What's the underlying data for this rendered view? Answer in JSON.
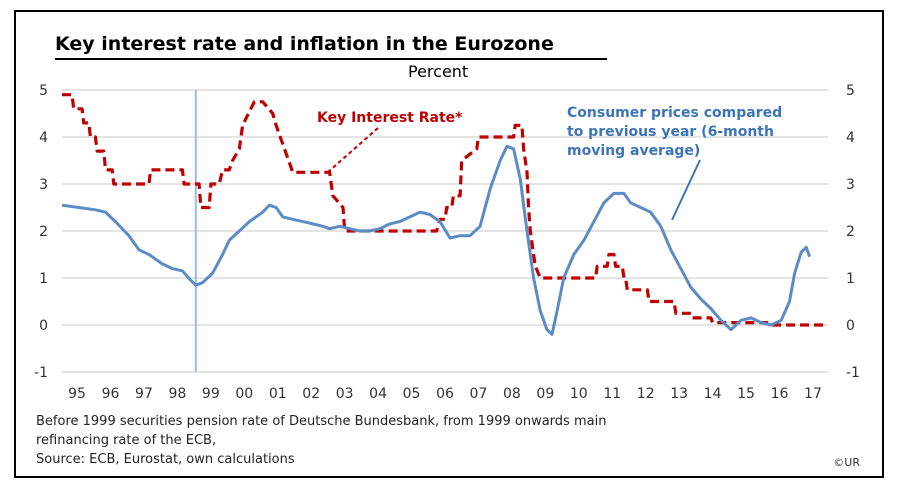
{
  "chart_data": {
    "type": "line",
    "title": "Key interest rate and inflation in the Eurozone",
    "subtitle": "Percent",
    "ylim": [
      -1,
      5
    ],
    "y_ticks": [
      -1,
      0,
      1,
      2,
      3,
      4,
      5
    ],
    "xlim": [
      1995,
      2017.9
    ],
    "categories": [
      "95",
      "96",
      "97",
      "98",
      "99",
      "00",
      "01",
      "02",
      "03",
      "04",
      "05",
      "06",
      "07",
      "08",
      "09",
      "10",
      "11",
      "12",
      "13",
      "14",
      "15",
      "16",
      "17"
    ],
    "grid": true,
    "reference_line_year": 1999.0,
    "series": [
      {
        "name": "Key Interest Rate*",
        "color": "#c00000",
        "style": "dashed",
        "x": [
          1995.0,
          1995.3,
          1995.35,
          1995.6,
          1995.65,
          1995.8,
          1995.85,
          1996.0,
          1996.05,
          1996.25,
          1996.3,
          1996.5,
          1996.55,
          1997.6,
          1997.65,
          1998.6,
          1998.65,
          1998.8,
          1999.0,
          1999.1,
          1999.15,
          1999.4,
          1999.45,
          1999.7,
          1999.8,
          2000.0,
          2000.1,
          2000.3,
          2000.4,
          2000.75,
          2000.85,
          2001.0,
          2001.3,
          2001.4,
          2001.9,
          2002.0,
          2002.9,
          2003.0,
          2003.1,
          2003.4,
          2003.45,
          2005.9,
          2006.0,
          2006.2,
          2006.3,
          2006.45,
          2006.5,
          2006.65,
          2006.7,
          2006.9,
          2006.95,
          2007.4,
          2007.45,
          2008.5,
          2008.55,
          2008.75,
          2008.8,
          2008.9,
          2008.95,
          2009.0,
          2009.1,
          2009.15,
          2009.3,
          2009.35,
          2010.95,
          2011.0,
          2011.3,
          2011.35,
          2011.5,
          2011.55,
          2011.75,
          2011.8,
          2011.85,
          2011.9,
          2012.5,
          2012.55,
          2013.3,
          2013.35,
          2013.8,
          2013.85,
          2014.4,
          2014.45,
          2014.65,
          2014.7,
          2015.0,
          2016.2,
          2016.25,
          2017.9
        ],
        "values": [
          4.9,
          4.9,
          4.6,
          4.6,
          4.3,
          4.3,
          4.0,
          4.0,
          3.7,
          3.7,
          3.3,
          3.3,
          3.0,
          3.0,
          3.3,
          3.3,
          3.0,
          3.0,
          3.0,
          3.0,
          2.5,
          2.5,
          3.0,
          3.0,
          3.3,
          3.3,
          3.5,
          3.75,
          4.25,
          4.75,
          4.75,
          4.75,
          4.5,
          4.25,
          3.25,
          3.25,
          3.25,
          3.25,
          2.75,
          2.5,
          2.0,
          2.0,
          2.0,
          2.0,
          2.25,
          2.25,
          2.5,
          2.5,
          2.75,
          2.75,
          3.5,
          3.75,
          4.0,
          4.0,
          4.25,
          4.25,
          3.75,
          3.25,
          2.5,
          2.0,
          1.5,
          1.25,
          1.0,
          1.0,
          1.0,
          1.25,
          1.25,
          1.5,
          1.5,
          1.25,
          1.25,
          1.0,
          1.0,
          0.75,
          0.75,
          0.5,
          0.5,
          0.25,
          0.25,
          0.15,
          0.15,
          0.05,
          0.05,
          0.05,
          0.05,
          0.05,
          0.0,
          0.0
        ]
      },
      {
        "name": "Consumer prices compared to previous year (6-month moving average)",
        "color": "#5b8cc5",
        "style": "solid",
        "x": [
          1995.0,
          1995.5,
          1996.0,
          1996.3,
          1996.6,
          1997.0,
          1997.3,
          1997.6,
          1998.0,
          1998.3,
          1998.6,
          1998.85,
          1999.0,
          1999.2,
          1999.5,
          1999.8,
          2000.0,
          2000.3,
          2000.6,
          2000.8,
          2001.0,
          2001.2,
          2001.4,
          2001.6,
          2001.9,
          2002.2,
          2002.5,
          2002.8,
          2003.0,
          2003.3,
          2003.6,
          2003.9,
          2004.2,
          2004.5,
          2004.8,
          2005.1,
          2005.4,
          2005.7,
          2006.0,
          2006.3,
          2006.6,
          2006.9,
          2007.2,
          2007.5,
          2007.8,
          2008.1,
          2008.3,
          2008.5,
          2008.7,
          2008.9,
          2009.1,
          2009.3,
          2009.5,
          2009.65,
          2009.8,
          2010.0,
          2010.3,
          2010.6,
          2010.9,
          2011.2,
          2011.5,
          2011.8,
          2012.0,
          2012.3,
          2012.6,
          2012.9,
          2013.2,
          2013.5,
          2013.8,
          2014.1,
          2014.4,
          2014.7,
          2015.0,
          2015.3,
          2015.6,
          2015.9,
          2016.2,
          2016.5,
          2016.75,
          2016.9,
          2017.1,
          2017.25,
          2017.35
        ],
        "values": [
          2.55,
          2.5,
          2.45,
          2.4,
          2.2,
          1.9,
          1.6,
          1.5,
          1.3,
          1.2,
          1.15,
          0.95,
          0.85,
          0.9,
          1.1,
          1.5,
          1.8,
          2.0,
          2.2,
          2.3,
          2.4,
          2.55,
          2.5,
          2.3,
          2.25,
          2.2,
          2.15,
          2.1,
          2.05,
          2.1,
          2.05,
          2.0,
          2.0,
          2.05,
          2.15,
          2.2,
          2.3,
          2.4,
          2.35,
          2.2,
          1.85,
          1.9,
          1.9,
          2.1,
          2.9,
          3.5,
          3.8,
          3.75,
          3.1,
          2.0,
          1.0,
          0.3,
          -0.1,
          -0.2,
          0.3,
          1.0,
          1.5,
          1.8,
          2.2,
          2.6,
          2.8,
          2.8,
          2.6,
          2.5,
          2.4,
          2.1,
          1.6,
          1.2,
          0.8,
          0.55,
          0.35,
          0.1,
          -0.1,
          0.1,
          0.15,
          0.05,
          0.0,
          0.1,
          0.5,
          1.1,
          1.55,
          1.65,
          1.45
        ]
      }
    ],
    "annotations": [
      {
        "text": "Key Interest Rate*",
        "color": "#c00000"
      },
      {
        "lines": [
          "Consumer prices compared",
          "to previous year (6-month",
          "moving average)"
        ],
        "color": "#3d74b8"
      }
    ]
  },
  "footnote": {
    "line1": "Before 1999 securities pension rate of Deutsche Bundesbank, from 1999 onwards main",
    "line2": "refinancing rate of the ECB,",
    "line3": "Source: ECB, Eurostat, own calculations"
  },
  "copyright": "©UR"
}
